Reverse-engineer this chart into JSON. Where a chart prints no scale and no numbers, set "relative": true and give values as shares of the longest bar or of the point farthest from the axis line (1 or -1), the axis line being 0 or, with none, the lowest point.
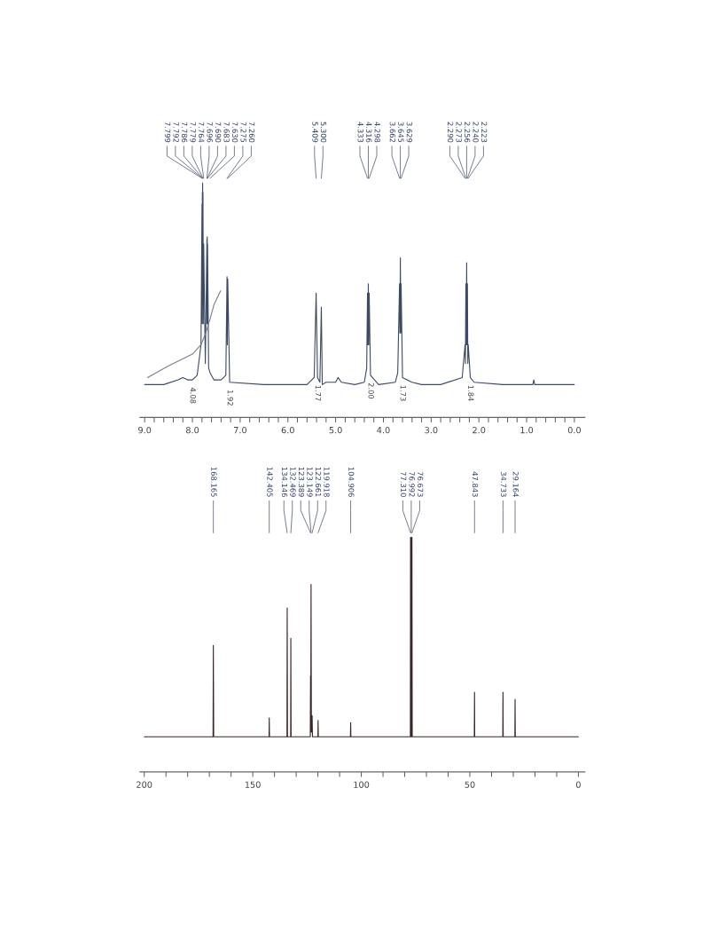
{
  "chart_data": [
    {
      "type": "line",
      "relative": true,
      "legend": false,
      "grid": false,
      "tick_labels": "x",
      "xlim": [
        9.1,
        -0.22
      ],
      "xticks": [
        {
          "value": 9.0,
          "label": "9.0"
        },
        {
          "value": 8.8,
          "label": null
        },
        {
          "value": 8.6,
          "label": null
        },
        {
          "value": 8.4,
          "label": null
        },
        {
          "value": 8.2,
          "label": null
        },
        {
          "value": 8.0,
          "label": "8.0"
        },
        {
          "value": 7.8,
          "label": null
        },
        {
          "value": 7.6,
          "label": null
        },
        {
          "value": 7.4,
          "label": null
        },
        {
          "value": 7.2,
          "label": null
        },
        {
          "value": 7.0,
          "label": "7.0"
        },
        {
          "value": 6.8,
          "label": null
        },
        {
          "value": 6.6,
          "label": null
        },
        {
          "value": 6.4,
          "label": null
        },
        {
          "value": 6.2,
          "label": null
        },
        {
          "value": 6.0,
          "label": "6.0"
        },
        {
          "value": 5.8,
          "label": null
        },
        {
          "value": 5.6,
          "label": null
        },
        {
          "value": 5.4,
          "label": null
        },
        {
          "value": 5.2,
          "label": null
        },
        {
          "value": 5.0,
          "label": "5.0"
        },
        {
          "value": 4.8,
          "label": null
        },
        {
          "value": 4.6,
          "label": null
        },
        {
          "value": 4.4,
          "label": null
        },
        {
          "value": 4.2,
          "label": null
        },
        {
          "value": 4.0,
          "label": "4.0"
        },
        {
          "value": 3.8,
          "label": null
        },
        {
          "value": 3.6,
          "label": null
        },
        {
          "value": 3.4,
          "label": null
        },
        {
          "value": 3.2,
          "label": null
        },
        {
          "value": 3.0,
          "label": "3.0"
        },
        {
          "value": 2.8,
          "label": null
        },
        {
          "value": 2.6,
          "label": null
        },
        {
          "value": 2.4,
          "label": null
        },
        {
          "value": 2.2,
          "label": null
        },
        {
          "value": 2.0,
          "label": "2.0"
        },
        {
          "value": 1.8,
          "label": null
        },
        {
          "value": 1.6,
          "label": null
        },
        {
          "value": 1.4,
          "label": null
        },
        {
          "value": 1.2,
          "label": null
        },
        {
          "value": 1.0,
          "label": "1.0"
        },
        {
          "value": 0.8,
          "label": null
        },
        {
          "value": 0.6,
          "label": null
        },
        {
          "value": 0.4,
          "label": null
        },
        {
          "value": 0.2,
          "label": null
        },
        {
          "value": 0.0,
          "label": "0.0"
        }
      ],
      "series": [
        {
          "color": "#3c4a66",
          "x": [
            9.0,
            8.6,
            8.3,
            8.2,
            8.1,
            8.0,
            7.9,
            7.82,
            7.799,
            7.795,
            7.792,
            7.789,
            7.786,
            7.783,
            7.779,
            7.772,
            7.764,
            7.73,
            7.696,
            7.693,
            7.69,
            7.687,
            7.683,
            7.66,
            7.63,
            7.55,
            7.4,
            7.3,
            7.275,
            7.268,
            7.26,
            7.22,
            6.5,
            5.6,
            5.45,
            5.409,
            5.38,
            5.33,
            5.3,
            5.28,
            5.2,
            5.0,
            4.95,
            4.88,
            4.6,
            4.4,
            4.35,
            4.333,
            4.325,
            4.316,
            4.307,
            4.298,
            4.27,
            4.1,
            3.75,
            3.7,
            3.662,
            3.654,
            3.645,
            3.636,
            3.629,
            3.6,
            3.4,
            3.2,
            2.8,
            2.35,
            2.29,
            2.282,
            2.273,
            2.265,
            2.256,
            2.248,
            2.24,
            2.232,
            2.223,
            2.18,
            2.1,
            1.5,
            0.87,
            0.85,
            0.83,
            0.0
          ],
          "values": [
            0.14,
            0.14,
            0.16,
            0.17,
            0.16,
            0.16,
            0.18,
            0.31,
            0.91,
            0.4,
            0.96,
            0.48,
            1,
            0.48,
            0.96,
            0.4,
            0.74,
            0.23,
            0.76,
            0.4,
            0.77,
            0.4,
            0.74,
            0.21,
            0.19,
            0.16,
            0.16,
            0.18,
            0.6,
            0.31,
            0.59,
            0.15,
            0.14,
            0.14,
            0.17,
            0.53,
            0.17,
            0.15,
            0.47,
            0.14,
            0.15,
            0.15,
            0.17,
            0.15,
            0.14,
            0.15,
            0.21,
            0.53,
            0.31,
            0.57,
            0.31,
            0.53,
            0.18,
            0.14,
            0.15,
            0.19,
            0.57,
            0.36,
            0.68,
            0.36,
            0.57,
            0.17,
            0.15,
            0.14,
            0.14,
            0.17,
            0.31,
            0.23,
            0.57,
            0.31,
            0.66,
            0.31,
            0.57,
            0.23,
            0.31,
            0.17,
            0.15,
            0.14,
            0.14,
            0.16,
            0.14,
            0.14
          ]
        },
        {
          "color": "#7a7f88",
          "x": [
            8.94,
            8.5,
            8.0,
            7.82,
            7.72,
            7.63,
            7.55,
            7.41
          ],
          "values": [
            0.17,
            0.22,
            0.27,
            0.31,
            0.36,
            0.42,
            0.48,
            0.54
          ]
        }
      ],
      "annotations": [
        {
          "text": "7.799",
          "x": 7.799
        },
        {
          "text": "7.792",
          "x": 7.792
        },
        {
          "text": "7.786",
          "x": 7.786
        },
        {
          "text": "7.779",
          "x": 7.779
        },
        {
          "text": "7.764",
          "x": 7.764
        },
        {
          "text": "7.696",
          "x": 7.696
        },
        {
          "text": "7.690",
          "x": 7.69
        },
        {
          "text": "7.683",
          "x": 7.683
        },
        {
          "text": "7.630",
          "x": 7.63
        },
        {
          "text": "7.275",
          "x": 7.275
        },
        {
          "text": "7.260",
          "x": 7.26
        },
        {
          "text": "5.409",
          "x": 5.409
        },
        {
          "text": "5.300",
          "x": 5.3
        },
        {
          "text": "4.333",
          "x": 4.333
        },
        {
          "text": "4.316",
          "x": 4.316
        },
        {
          "text": "4.298",
          "x": 4.298
        },
        {
          "text": "3.662",
          "x": 3.662
        },
        {
          "text": "3.645",
          "x": 3.645
        },
        {
          "text": "3.629",
          "x": 3.629
        },
        {
          "text": "2.290",
          "x": 2.29
        },
        {
          "text": "2.273",
          "x": 2.273
        },
        {
          "text": "2.256",
          "x": 2.256
        },
        {
          "text": "2.240",
          "x": 2.24
        },
        {
          "text": "2.223",
          "x": 2.223
        },
        {
          "text": "4.08",
          "x": 8.0,
          "y": 0.16
        },
        {
          "text": "1.92",
          "x": 7.22,
          "y": 0.15
        },
        {
          "text": "1.77",
          "x": 5.38,
          "y": 0.17
        },
        {
          "text": "2.00",
          "x": 4.27,
          "y": 0.18
        },
        {
          "text": "1.73",
          "x": 3.6,
          "y": 0.17
        },
        {
          "text": "1.84",
          "x": 2.18,
          "y": 0.17
        }
      ]
    },
    {
      "type": "line",
      "relative": true,
      "legend": false,
      "grid": false,
      "tick_labels": "x",
      "xlim": [
        202,
        -3
      ],
      "xticks": [
        {
          "value": 200,
          "label": "200"
        },
        {
          "value": 190,
          "label": null
        },
        {
          "value": 180,
          "label": null
        },
        {
          "value": 170,
          "label": null
        },
        {
          "value": 160,
          "label": null
        },
        150,
        {
          "value": 140,
          "label": null
        },
        {
          "value": 130,
          "label": null
        },
        {
          "value": 120,
          "label": null
        },
        {
          "value": 110,
          "label": null
        },
        100,
        {
          "value": 90,
          "label": null
        },
        {
          "value": 80,
          "label": null
        },
        {
          "value": 70,
          "label": null
        },
        {
          "value": 60,
          "label": null
        },
        50,
        {
          "value": 40,
          "label": null
        },
        {
          "value": 30,
          "label": null
        },
        {
          "value": 20,
          "label": null
        },
        {
          "value": 10,
          "label": null
        },
        0
      ],
      "series": [
        {
          "color": "#3a2626",
          "x": [
            200,
            168.3,
            168.165,
            168.0,
            142.5,
            142.405,
            142.3,
            134.25,
            134.146,
            134.0,
            132.55,
            132.469,
            132.35,
            123.5,
            123.389,
            123.3,
            123.149,
            123.0,
            122.661,
            122.5,
            120.0,
            119.918,
            119.8,
            105.0,
            104.906,
            104.8,
            77.4,
            77.31,
            77.15,
            76.992,
            76.83,
            76.673,
            76.55,
            47.95,
            47.843,
            47.75,
            34.83,
            34.733,
            34.63,
            29.26,
            29.164,
            29.06,
            0
          ],
          "values": [
            0.15,
            0.15,
            0.54,
            0.15,
            0.15,
            0.23,
            0.15,
            0.15,
            0.7,
            0.15,
            0.15,
            0.57,
            0.15,
            0.15,
            0.41,
            0.17,
            0.8,
            0.17,
            0.24,
            0.15,
            0.15,
            0.22,
            0.15,
            0.15,
            0.21,
            0.15,
            0.15,
            1,
            0.15,
            1,
            0.15,
            1,
            0.15,
            0.15,
            0.34,
            0.15,
            0.15,
            0.34,
            0.15,
            0.15,
            0.31,
            0.15,
            0.15
          ]
        }
      ],
      "annotations": [
        {
          "text": "168.165",
          "x": 168.165
        },
        {
          "text": "142.405",
          "x": 142.405
        },
        {
          "text": "134.146",
          "x": 134.146
        },
        {
          "text": "132.469",
          "x": 132.469
        },
        {
          "text": "123.389",
          "x": 123.389
        },
        {
          "text": "123.149",
          "x": 123.149
        },
        {
          "text": "122.661",
          "x": 122.661
        },
        {
          "text": "119.918",
          "x": 119.918
        },
        {
          "text": "104.906",
          "x": 104.906
        },
        {
          "text": "77.310",
          "x": 77.31
        },
        {
          "text": "76.992",
          "x": 76.992
        },
        {
          "text": "76.673",
          "x": 76.673
        },
        {
          "text": "47.843",
          "x": 47.843
        },
        {
          "text": "34.733",
          "x": 34.733
        },
        {
          "text": "29.164",
          "x": 29.164
        }
      ]
    }
  ]
}
